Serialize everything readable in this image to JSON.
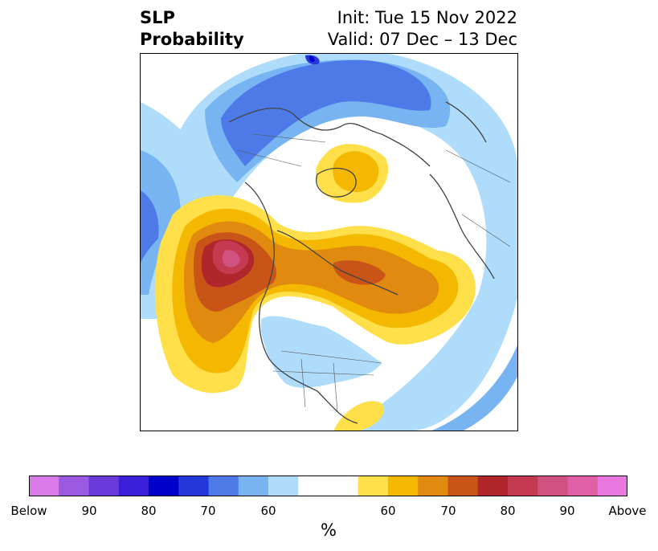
{
  "title": {
    "left_line1": "SLP",
    "left_line2": "Probability",
    "right_line1": "Init: Tue 15 Nov 2022",
    "right_line2": "Valid: 07 Dec – 13 Dec"
  },
  "colorbar": {
    "unit": "%",
    "colors": [
      "#d97ae8",
      "#9b59e0",
      "#6a3ad8",
      "#3a1fd8",
      "#0000cc",
      "#2437d8",
      "#4e7ae8",
      "#79b4f2",
      "#aedcfa",
      "#ffffff",
      "#ffe04a",
      "#f5b800",
      "#e08a10",
      "#c85418",
      "#b0262a",
      "#c43a50",
      "#d05080",
      "#e060a8",
      "#e878e0"
    ],
    "tick_labels": [
      "Below",
      "90",
      "80",
      "70",
      "60",
      "60",
      "70",
      "80",
      "90",
      "Above"
    ]
  },
  "map": {
    "projection": "north-polar-stereographic",
    "palette": {
      "below_60": "#aedcfa",
      "below_70": "#79b4f2",
      "below_80": "#4e7ae8",
      "below_90": "#2437d8",
      "below_max": "#0000cc",
      "above_60": "#ffe04a",
      "above_70": "#f5b800",
      "above_80": "#e08a10",
      "above_90": "#c85418",
      "above_max": "#b0262a",
      "above_peak": "#c43a50",
      "above_top": "#d05080"
    }
  }
}
